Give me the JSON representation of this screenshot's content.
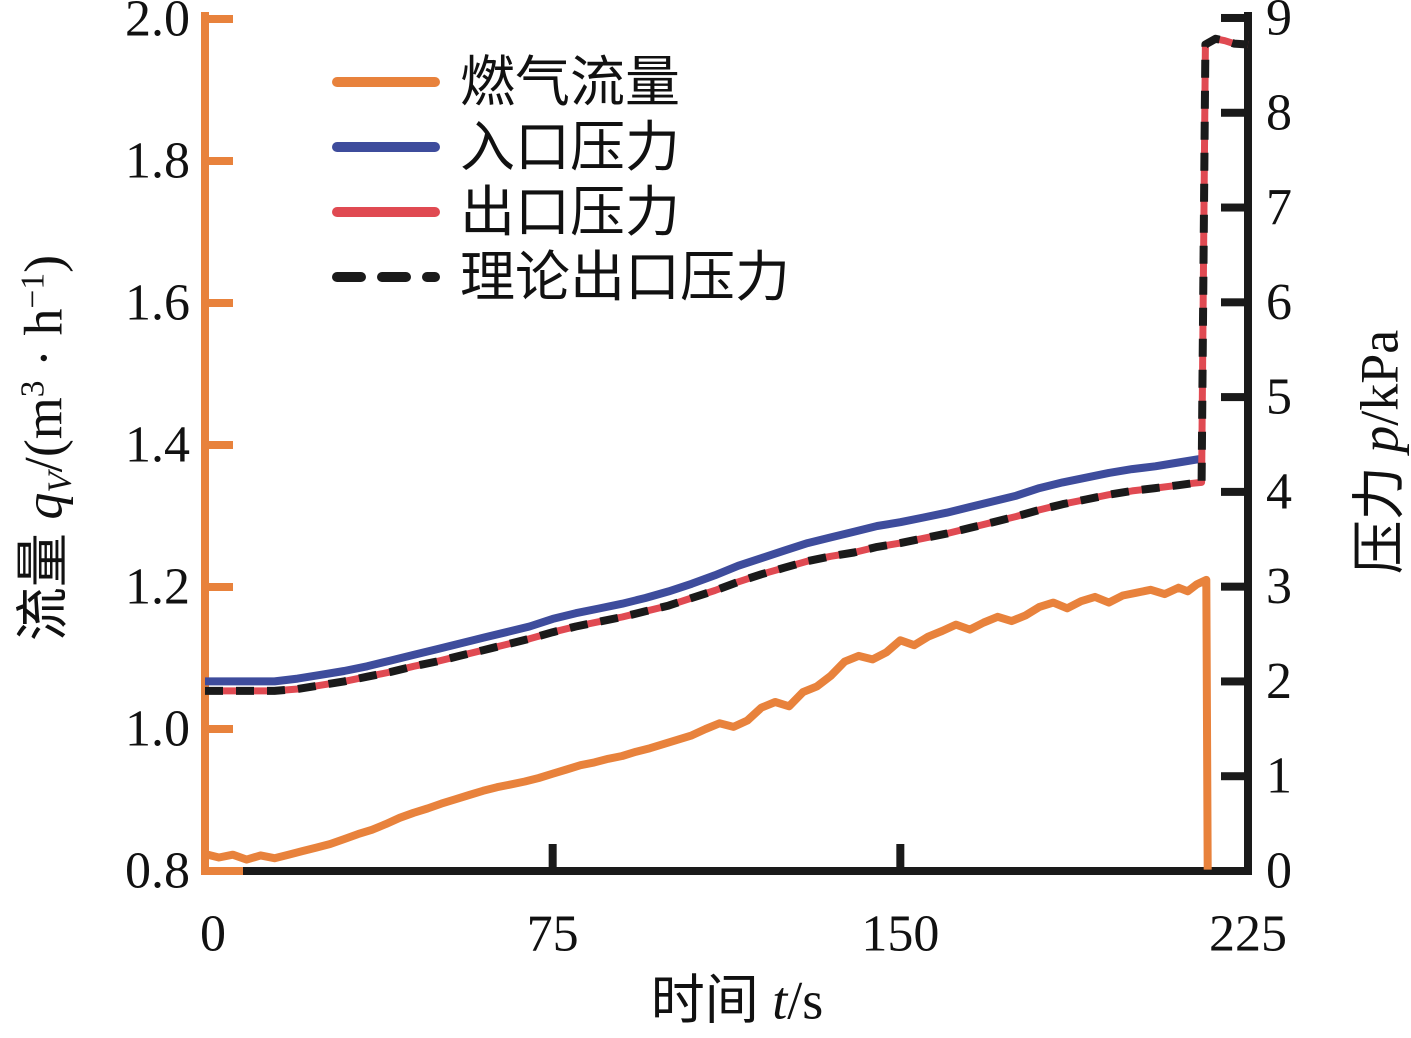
{
  "figure": {
    "background": "#ffffff",
    "x_axis_title_parts": [
      {
        "t": "时间 "
      },
      {
        "t": "t",
        "i": 1
      },
      {
        "t": "/s"
      }
    ],
    "left_axis_title_parts": [
      {
        "t": "流量 "
      },
      {
        "t": "q",
        "i": 1
      },
      {
        "t": "V",
        "sub": 1
      },
      {
        "t": "/(m"
      },
      {
        "t": "3",
        "sup": 1
      },
      {
        "t": " · h"
      },
      {
        "t": "−1",
        "sup": 1
      },
      {
        "t": ")"
      }
    ],
    "right_axis_title_parts": [
      {
        "t": "压力 "
      },
      {
        "t": "p",
        "i": 1
      },
      {
        "t": "/kPa"
      }
    ]
  },
  "chart_data": {
    "type": "line",
    "title": "",
    "xlabel": "时间 t/s",
    "ylabel_left": "流量 qV/(m³·h⁻¹)",
    "ylabel_right": "压力 p/kPa",
    "grid": false,
    "legend_position": "upper-left-inside",
    "x_axis": {
      "range": [
        0,
        225
      ],
      "ticks": [
        "0",
        "75",
        "150",
        "225"
      ],
      "color": "#1A1A1A"
    },
    "left_axis": {
      "range": [
        0.8,
        2.0
      ],
      "ticks": [
        "2.0",
        "1.8",
        "1.6",
        "1.4",
        "1.2",
        "1.0",
        "0.8"
      ],
      "color": "#E8823C"
    },
    "right_axis": {
      "range": [
        0,
        9
      ],
      "ticks": [
        "9",
        "8",
        "7",
        "6",
        "5",
        "4",
        "3",
        "2",
        "1",
        "0"
      ],
      "color": "#1A1A1A"
    },
    "legend": [
      {
        "label": "燃气流量",
        "color": "#E8823C",
        "style": "solid"
      },
      {
        "label": "入口压力",
        "color": "#3E4C9C",
        "style": "solid"
      },
      {
        "label": "出口压力",
        "color": "#E04A52",
        "style": "solid"
      },
      {
        "label": "理论出口压力",
        "color": "#1A1A1A",
        "style": "dashed"
      }
    ],
    "series": [
      {
        "name": "燃气流量",
        "key": "gas_flow",
        "axis": "left",
        "unit": "m3/h",
        "color": "#E8823C",
        "style": "solid",
        "width": 8,
        "points": [
          [
            0,
            0.824
          ],
          [
            3,
            0.819
          ],
          [
            6,
            0.823
          ],
          [
            9,
            0.816
          ],
          [
            12,
            0.822
          ],
          [
            15,
            0.818
          ],
          [
            18,
            0.823
          ],
          [
            21,
            0.828
          ],
          [
            24,
            0.833
          ],
          [
            27,
            0.838
          ],
          [
            30,
            0.845
          ],
          [
            33,
            0.852
          ],
          [
            36,
            0.858
          ],
          [
            39,
            0.866
          ],
          [
            42,
            0.875
          ],
          [
            45,
            0.882
          ],
          [
            48,
            0.888
          ],
          [
            51,
            0.895
          ],
          [
            54,
            0.901
          ],
          [
            57,
            0.907
          ],
          [
            60,
            0.913
          ],
          [
            63,
            0.918
          ],
          [
            66,
            0.922
          ],
          [
            69,
            0.926
          ],
          [
            72,
            0.931
          ],
          [
            75,
            0.937
          ],
          [
            78,
            0.943
          ],
          [
            81,
            0.949
          ],
          [
            84,
            0.953
          ],
          [
            87,
            0.958
          ],
          [
            90,
            0.962
          ],
          [
            93,
            0.968
          ],
          [
            96,
            0.973
          ],
          [
            99,
            0.979
          ],
          [
            102,
            0.985
          ],
          [
            105,
            0.991
          ],
          [
            108,
            1.0
          ],
          [
            111,
            1.008
          ],
          [
            114,
            1.003
          ],
          [
            117,
            1.012
          ],
          [
            120,
            1.03
          ],
          [
            123,
            1.038
          ],
          [
            126,
            1.032
          ],
          [
            129,
            1.052
          ],
          [
            132,
            1.06
          ],
          [
            135,
            1.075
          ],
          [
            138,
            1.095
          ],
          [
            141,
            1.103
          ],
          [
            144,
            1.098
          ],
          [
            147,
            1.108
          ],
          [
            150,
            1.125
          ],
          [
            153,
            1.118
          ],
          [
            156,
            1.13
          ],
          [
            159,
            1.138
          ],
          [
            162,
            1.147
          ],
          [
            165,
            1.14
          ],
          [
            168,
            1.15
          ],
          [
            171,
            1.158
          ],
          [
            174,
            1.152
          ],
          [
            177,
            1.16
          ],
          [
            180,
            1.172
          ],
          [
            183,
            1.178
          ],
          [
            186,
            1.17
          ],
          [
            189,
            1.18
          ],
          [
            192,
            1.186
          ],
          [
            195,
            1.178
          ],
          [
            198,
            1.188
          ],
          [
            201,
            1.192
          ],
          [
            204,
            1.196
          ],
          [
            207,
            1.19
          ],
          [
            210,
            1.199
          ],
          [
            212,
            1.194
          ],
          [
            214,
            1.204
          ],
          [
            216,
            1.21
          ],
          [
            216.3,
            0.802
          ]
        ]
      },
      {
        "name": "入口压力",
        "key": "inlet_pressure",
        "axis": "right",
        "unit": "kPa",
        "color": "#3E4C9C",
        "style": "solid",
        "width": 8,
        "points": [
          [
            0,
            2.0
          ],
          [
            5,
            2.0
          ],
          [
            10,
            2.0
          ],
          [
            15,
            2.0
          ],
          [
            20,
            2.03
          ],
          [
            25,
            2.07
          ],
          [
            30,
            2.11
          ],
          [
            35,
            2.16
          ],
          [
            40,
            2.22
          ],
          [
            45,
            2.28
          ],
          [
            50,
            2.34
          ],
          [
            55,
            2.4
          ],
          [
            60,
            2.46
          ],
          [
            65,
            2.52
          ],
          [
            70,
            2.58
          ],
          [
            75,
            2.66
          ],
          [
            80,
            2.72
          ],
          [
            85,
            2.77
          ],
          [
            90,
            2.82
          ],
          [
            95,
            2.88
          ],
          [
            100,
            2.95
          ],
          [
            105,
            3.03
          ],
          [
            110,
            3.12
          ],
          [
            115,
            3.22
          ],
          [
            120,
            3.3
          ],
          [
            125,
            3.38
          ],
          [
            130,
            3.46
          ],
          [
            135,
            3.52
          ],
          [
            140,
            3.58
          ],
          [
            145,
            3.64
          ],
          [
            150,
            3.68
          ],
          [
            155,
            3.73
          ],
          [
            160,
            3.78
          ],
          [
            165,
            3.84
          ],
          [
            170,
            3.9
          ],
          [
            175,
            3.96
          ],
          [
            180,
            4.04
          ],
          [
            185,
            4.1
          ],
          [
            190,
            4.15
          ],
          [
            195,
            4.2
          ],
          [
            200,
            4.24
          ],
          [
            205,
            4.27
          ],
          [
            210,
            4.31
          ],
          [
            215,
            4.35
          ]
        ]
      },
      {
        "name": "出口压力",
        "key": "outlet_pressure",
        "axis": "right",
        "unit": "kPa",
        "color": "#E04A52",
        "style": "solid",
        "width": 7,
        "points": [
          [
            0,
            1.9
          ],
          [
            5,
            1.9
          ],
          [
            10,
            1.9
          ],
          [
            15,
            1.9
          ],
          [
            20,
            1.92
          ],
          [
            25,
            1.96
          ],
          [
            30,
            2.0
          ],
          [
            35,
            2.05
          ],
          [
            40,
            2.1
          ],
          [
            45,
            2.16
          ],
          [
            50,
            2.21
          ],
          [
            55,
            2.27
          ],
          [
            60,
            2.33
          ],
          [
            65,
            2.39
          ],
          [
            70,
            2.45
          ],
          [
            75,
            2.52
          ],
          [
            80,
            2.58
          ],
          [
            85,
            2.63
          ],
          [
            90,
            2.68
          ],
          [
            95,
            2.74
          ],
          [
            100,
            2.8
          ],
          [
            105,
            2.88
          ],
          [
            110,
            2.96
          ],
          [
            115,
            3.05
          ],
          [
            120,
            3.13
          ],
          [
            125,
            3.2
          ],
          [
            130,
            3.27
          ],
          [
            135,
            3.32
          ],
          [
            140,
            3.36
          ],
          [
            145,
            3.42
          ],
          [
            150,
            3.46
          ],
          [
            155,
            3.51
          ],
          [
            160,
            3.56
          ],
          [
            165,
            3.62
          ],
          [
            170,
            3.68
          ],
          [
            175,
            3.74
          ],
          [
            180,
            3.81
          ],
          [
            185,
            3.87
          ],
          [
            190,
            3.92
          ],
          [
            195,
            3.97
          ],
          [
            200,
            4.01
          ],
          [
            205,
            4.04
          ],
          [
            210,
            4.07
          ],
          [
            213,
            4.09
          ],
          [
            215,
            4.1
          ],
          [
            215.8,
            8.72
          ],
          [
            218,
            8.78
          ],
          [
            220,
            8.76
          ],
          [
            222,
            8.73
          ],
          [
            225,
            8.72
          ]
        ]
      },
      {
        "name": "理论出口压力",
        "key": "theoretical_outlet_pressure",
        "axis": "right",
        "unit": "kPa",
        "color": "#1A1A1A",
        "style": "dashed",
        "width": 8,
        "points": [
          [
            0,
            1.9
          ],
          [
            5,
            1.9
          ],
          [
            10,
            1.9
          ],
          [
            15,
            1.9
          ],
          [
            20,
            1.92
          ],
          [
            25,
            1.96
          ],
          [
            30,
            2.0
          ],
          [
            35,
            2.05
          ],
          [
            40,
            2.1
          ],
          [
            45,
            2.16
          ],
          [
            50,
            2.21
          ],
          [
            55,
            2.27
          ],
          [
            60,
            2.33
          ],
          [
            65,
            2.39
          ],
          [
            70,
            2.45
          ],
          [
            75,
            2.52
          ],
          [
            80,
            2.58
          ],
          [
            85,
            2.63
          ],
          [
            90,
            2.68
          ],
          [
            95,
            2.74
          ],
          [
            100,
            2.8
          ],
          [
            105,
            2.88
          ],
          [
            110,
            2.96
          ],
          [
            115,
            3.05
          ],
          [
            120,
            3.13
          ],
          [
            125,
            3.2
          ],
          [
            130,
            3.27
          ],
          [
            135,
            3.32
          ],
          [
            140,
            3.36
          ],
          [
            145,
            3.42
          ],
          [
            150,
            3.46
          ],
          [
            155,
            3.51
          ],
          [
            160,
            3.56
          ],
          [
            165,
            3.62
          ],
          [
            170,
            3.68
          ],
          [
            175,
            3.74
          ],
          [
            180,
            3.81
          ],
          [
            185,
            3.87
          ],
          [
            190,
            3.92
          ],
          [
            195,
            3.97
          ],
          [
            200,
            4.01
          ],
          [
            205,
            4.04
          ],
          [
            210,
            4.07
          ],
          [
            213,
            4.09
          ],
          [
            215,
            4.1
          ],
          [
            215.8,
            8.72
          ],
          [
            218,
            8.78
          ],
          [
            220,
            8.76
          ],
          [
            222,
            8.73
          ],
          [
            225,
            8.72
          ]
        ]
      }
    ]
  }
}
